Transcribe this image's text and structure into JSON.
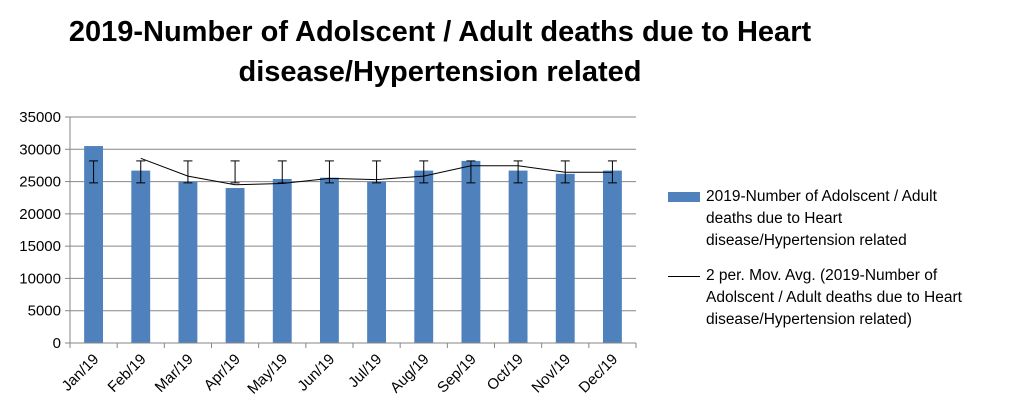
{
  "title_lines": [
    "2019-Number of Adolscent / Adult deaths due to Heart",
    "disease/Hypertension related"
  ],
  "chart_data": {
    "type": "bar",
    "title": "2019-Number of Adolscent / Adult deaths due to Heart disease/Hypertension related",
    "categories": [
      "Jan/19",
      "Feb/19",
      "Mar/19",
      "Apr/19",
      "May/19",
      "Jun/19",
      "Jul/19",
      "Aug/19",
      "Sep/19",
      "Oct/19",
      "Nov/19",
      "Dec/19"
    ],
    "series": [
      {
        "name": "2019-Number of Adolscent / Adult deaths due to Heart disease/Hypertension related",
        "type": "bar",
        "color": "#4f81bd",
        "values": [
          30500,
          26700,
          25000,
          24000,
          25400,
          25600,
          25000,
          26700,
          28200,
          26700,
          26200,
          26700
        ],
        "error_bars": {
          "low": [
            24800,
            24800,
            24800,
            24800,
            24800,
            24800,
            24800,
            24800,
            24800,
            24800,
            24800,
            24800
          ],
          "high": [
            28200,
            28200,
            28200,
            28200,
            28200,
            28200,
            28200,
            28200,
            28200,
            28200,
            28200,
            28200
          ]
        }
      },
      {
        "name": "2 per. Mov. Avg. (2019-Number of Adolscent / Adult deaths due to Heart disease/Hypertension related)",
        "type": "line",
        "color": "#000000",
        "values": [
          null,
          28600,
          25850,
          24500,
          24700,
          25500,
          25300,
          25850,
          27450,
          27450,
          26450,
          26450
        ]
      }
    ],
    "ylim": [
      0,
      35000
    ],
    "yticks": [
      0,
      5000,
      10000,
      15000,
      20000,
      25000,
      30000,
      35000
    ],
    "grid": true,
    "legend_position": "right"
  },
  "legend": {
    "bar_label_lines": [
      "2019-Number of Adolscent / Adult",
      "deaths due to Heart",
      "disease/Hypertension related"
    ],
    "line_label_lines": [
      "2 per. Mov. Avg. (2019-Number of",
      "Adolscent / Adult deaths due to Heart",
      "disease/Hypertension related)"
    ]
  }
}
